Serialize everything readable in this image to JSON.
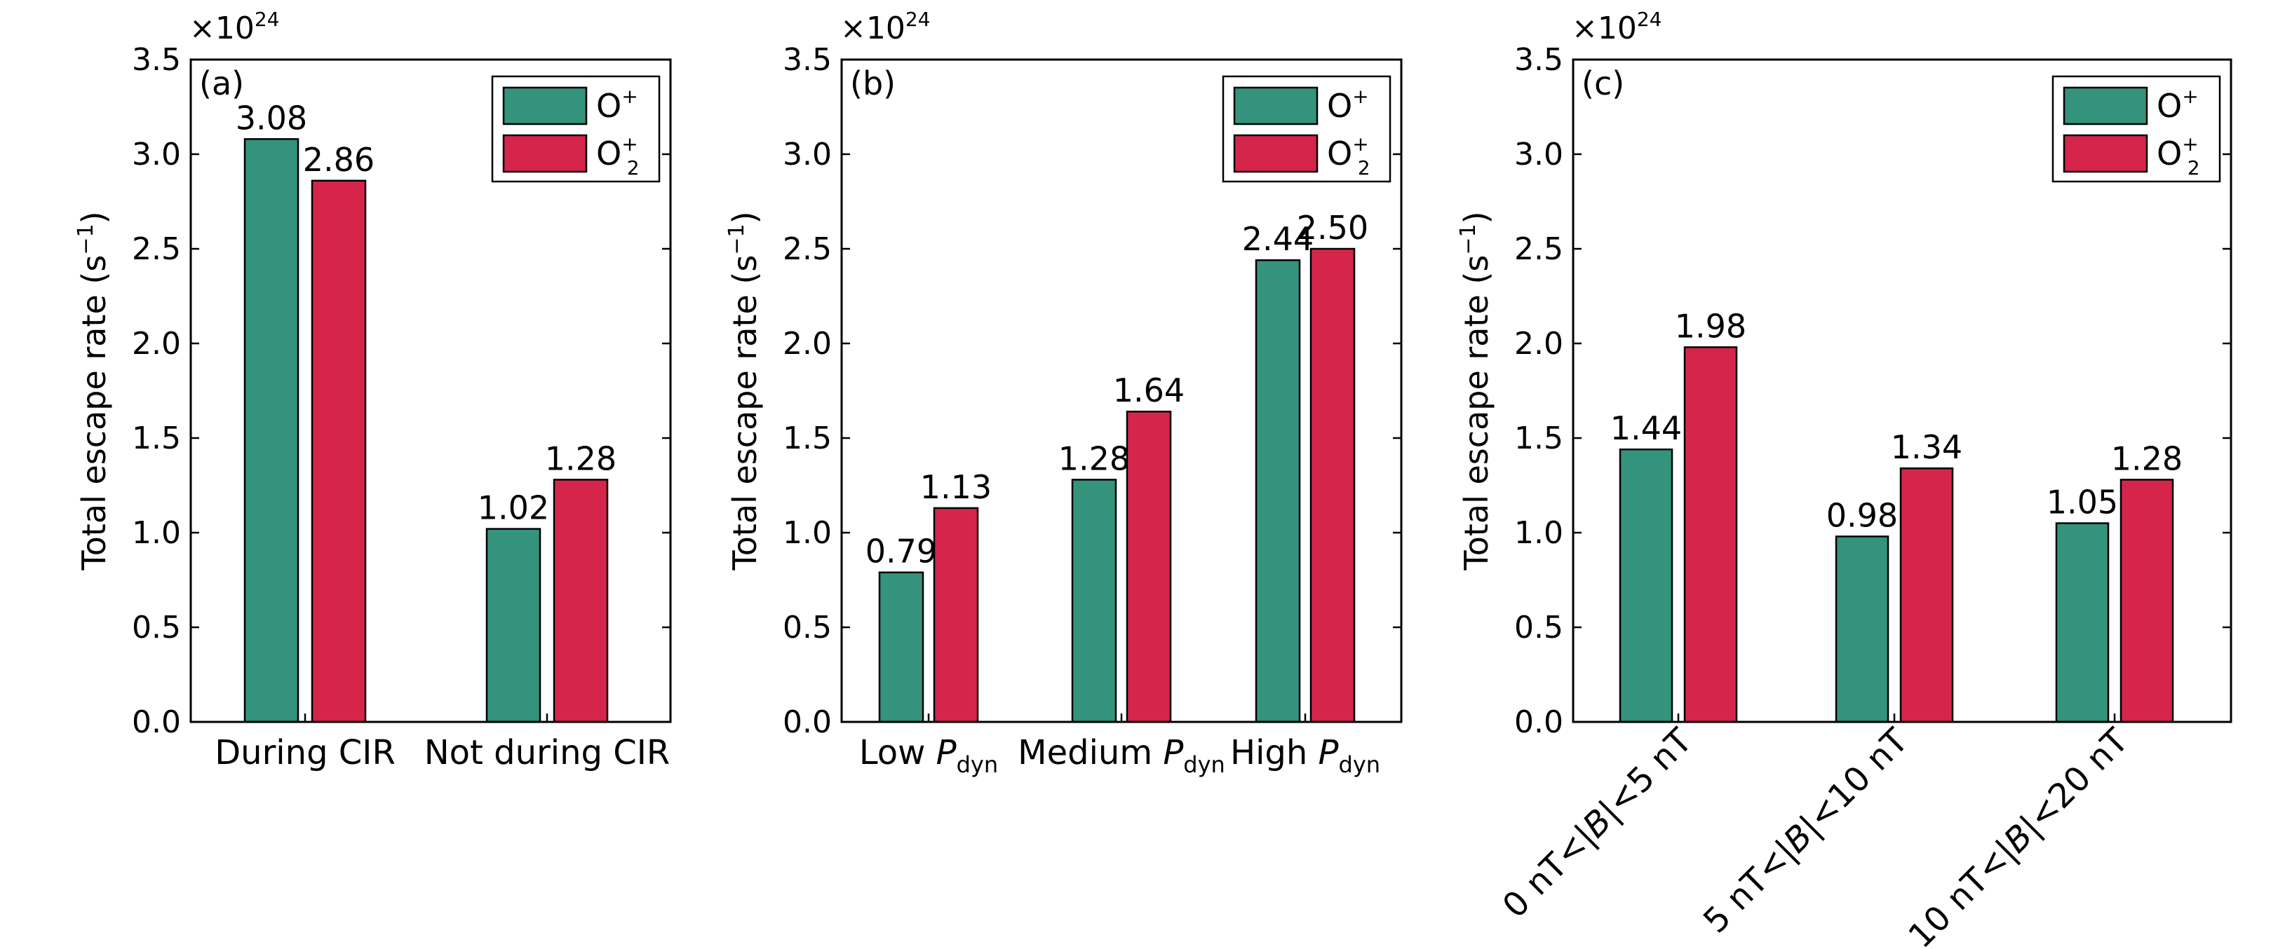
{
  "figure": {
    "ylabel_main": "Total escape rate (s",
    "ylabel_sup": "−1",
    "ylabel_close": ")"
  },
  "legend": [
    {
      "key": "o_plus",
      "base": "O",
      "sup": "+",
      "sub": "",
      "color": "#33937c"
    },
    {
      "key": "o2_plus",
      "base": "O",
      "sup": "+",
      "sub": "2",
      "color": "#d6254b"
    }
  ],
  "chart_data": [
    {
      "type": "bar",
      "panel_label": "(a)",
      "multiplier": {
        "base": "×10",
        "exp": "24"
      },
      "ylim": [
        0,
        3.5
      ],
      "yticks": [
        "0.0",
        "0.5",
        "1.0",
        "1.5",
        "2.0",
        "2.5",
        "3.0",
        "3.5"
      ],
      "categories": [
        {
          "text": "During CIR",
          "italic": "",
          "sub": ""
        },
        {
          "text": "Not during CIR",
          "italic": "",
          "sub": ""
        }
      ],
      "series": [
        {
          "values": [
            3.08,
            1.02
          ],
          "labels": [
            "3.08",
            "1.02"
          ]
        },
        {
          "values": [
            2.86,
            1.28
          ],
          "labels": [
            "2.86",
            "1.28"
          ]
        }
      ]
    },
    {
      "type": "bar",
      "panel_label": "(b)",
      "multiplier": {
        "base": "×10",
        "exp": "24"
      },
      "ylim": [
        0,
        3.5
      ],
      "yticks": [
        "0.0",
        "0.5",
        "1.0",
        "1.5",
        "2.0",
        "2.5",
        "3.0",
        "3.5"
      ],
      "categories": [
        {
          "text": "Low ",
          "italic": "P",
          "sub": "dyn"
        },
        {
          "text": "Medium ",
          "italic": "P",
          "sub": "dyn"
        },
        {
          "text": "High ",
          "italic": "P",
          "sub": "dyn"
        }
      ],
      "series": [
        {
          "values": [
            0.79,
            1.28,
            2.44
          ],
          "labels": [
            "0.79",
            "1.28",
            "2.44"
          ]
        },
        {
          "values": [
            1.13,
            1.64,
            2.5
          ],
          "labels": [
            "1.13",
            "1.64",
            "2.50"
          ]
        }
      ]
    },
    {
      "type": "bar",
      "panel_label": "(c)",
      "multiplier": {
        "base": "×10",
        "exp": "24"
      },
      "ylim": [
        0,
        3.5
      ],
      "yticks": [
        "0.0",
        "0.5",
        "1.0",
        "1.5",
        "2.0",
        "2.5",
        "3.0",
        "3.5"
      ],
      "categories": [
        {
          "pre": "0 nT<|",
          "italic": "B",
          "post": "|<5 nT"
        },
        {
          "pre": "5 nT<|",
          "italic": "B",
          "post": "|<10 nT"
        },
        {
          "pre": "10 nT<|",
          "italic": "B",
          "post": "|<20 nT"
        }
      ],
      "rotated": true,
      "series": [
        {
          "values": [
            1.44,
            0.98,
            1.05
          ],
          "labels": [
            "1.44",
            "0.98",
            "1.05"
          ]
        },
        {
          "values": [
            1.98,
            1.34,
            1.28
          ],
          "labels": [
            "1.98",
            "1.34",
            "1.28"
          ]
        }
      ]
    }
  ]
}
